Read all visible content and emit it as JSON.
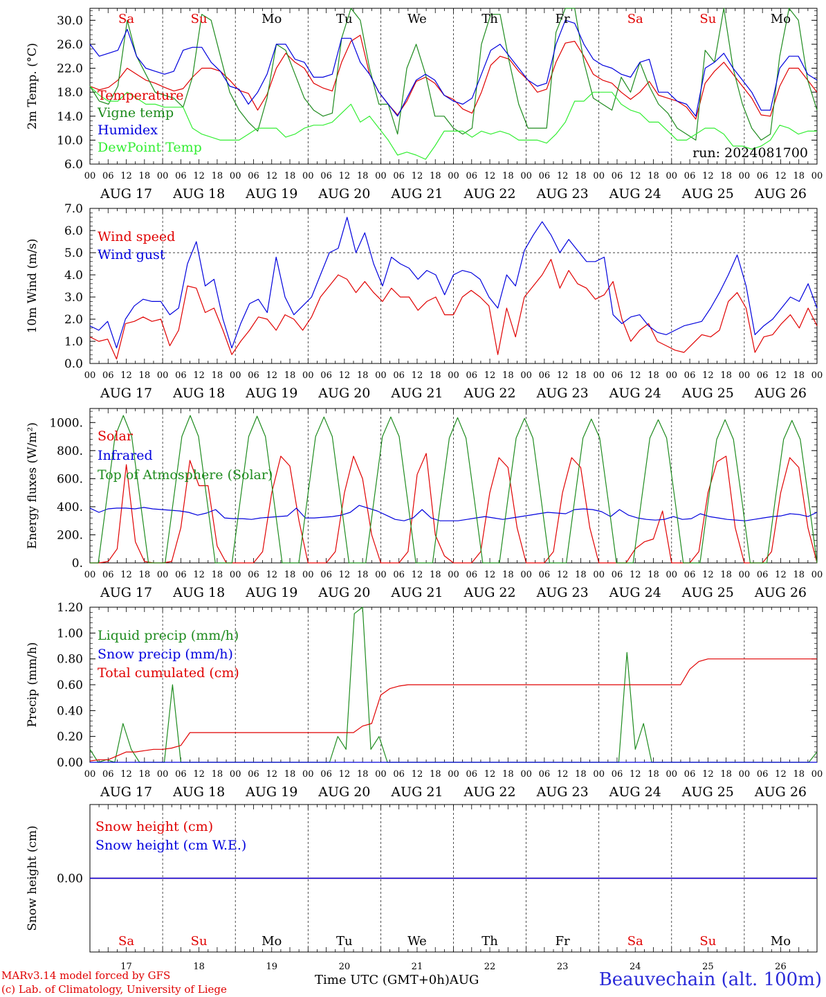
{
  "run_label": "run: 2024081700",
  "xaxis": {
    "hour_ticks": [
      "00",
      "06",
      "12",
      "18"
    ],
    "date_labels": [
      "AUG 17",
      "AUG 18",
      "AUG 19",
      "AUG 20",
      "AUG 21",
      "AUG 22",
      "AUG 23",
      "AUG 24",
      "AUG 25",
      "AUG 26"
    ],
    "weekday_labels": [
      "Sa",
      "Su",
      "Mo",
      "Tu",
      "We",
      "Th",
      "Fr",
      "Sa",
      "Su",
      "Mo"
    ],
    "weekend_color": "#e00000",
    "weekday_color": "#000000",
    "day_numbers": [
      "17",
      "18",
      "19",
      "20",
      "21",
      "22",
      "23",
      "24",
      "25",
      "26"
    ],
    "bottom_label": "Time UTC (GMT+0h)",
    "month_label": "AUG"
  },
  "footer": {
    "credit_line1": "MARv3.14 model forced by GFS",
    "credit_line2": "(c) Lab. of Climatology, University of Liege",
    "station": "Beauvechain (alt. 100m)"
  },
  "chart_data": [
    {
      "type": "line",
      "ylabel": "2m Temp. (°C)",
      "ylim": [
        6,
        32
      ],
      "yticks": [
        "6.0",
        "10.0",
        "14.0",
        "18.0",
        "22.0",
        "26.0",
        "30.0"
      ],
      "x": "hours since AUG 17 00 UTC, 3-hourly",
      "series": [
        {
          "name": "Temperature",
          "color": "#e00000",
          "values": [
            19,
            18.4,
            18.8,
            20,
            22,
            21,
            20,
            19.5,
            18.8,
            18.2,
            18.6,
            20.5,
            22,
            22,
            21.5,
            20,
            18.3,
            17.8,
            15,
            17.6,
            22,
            24.5,
            23,
            22,
            19.5,
            18.7,
            18.2,
            23,
            26.5,
            27.5,
            21,
            18,
            16,
            14.2,
            16.5,
            19.8,
            20.5,
            19.5,
            17.5,
            16.8,
            15.2,
            14.5,
            18,
            22.5,
            24,
            23.5,
            21.5,
            20,
            18,
            18.5,
            23,
            26.2,
            26.5,
            24,
            21,
            20,
            19.5,
            18,
            16.8,
            18,
            19.8,
            17.5,
            17,
            16.5,
            15.5,
            13.5,
            19.5,
            21.5,
            23,
            21,
            19,
            17,
            14.2,
            14,
            19,
            22,
            22,
            20,
            18
          ]
        },
        {
          "name": "Vigne temp",
          "color": "#1e8b1e",
          "values": [
            19,
            16.5,
            16,
            19,
            30,
            24,
            21,
            18,
            17.5,
            17,
            15.5,
            20.5,
            31,
            30,
            24,
            18,
            15,
            13,
            11.5,
            17,
            26,
            25,
            21,
            17,
            15,
            14,
            14.5,
            27,
            32,
            30,
            22,
            16,
            16,
            11,
            22,
            26,
            21,
            14,
            14,
            12,
            11,
            12,
            26,
            31,
            31,
            23,
            16,
            12,
            12,
            12,
            28,
            32,
            32,
            23,
            17,
            16,
            15,
            20.5,
            18,
            23,
            19,
            16,
            14.5,
            12,
            11,
            10,
            25,
            23,
            32,
            22,
            16,
            12,
            10,
            11,
            24,
            32,
            30,
            20,
            15
          ]
        },
        {
          "name": "Humidex",
          "color": "#0000dd",
          "values": [
            26,
            24,
            24.5,
            25,
            28.5,
            24,
            22,
            21.5,
            21,
            21.5,
            25,
            25.5,
            25.5,
            23,
            21.5,
            19,
            18.5,
            16,
            18,
            21,
            26,
            26,
            23.5,
            23,
            20.5,
            20.5,
            21,
            27,
            27,
            23,
            21,
            18,
            16,
            14,
            17,
            20,
            21,
            20,
            17.5,
            16.5,
            16,
            17,
            21,
            25,
            26,
            24,
            22,
            20,
            19,
            19.5,
            26,
            30,
            29.5,
            26,
            23.5,
            22.5,
            22,
            21,
            20.5,
            23,
            23.5,
            18,
            18,
            16.5,
            16,
            14,
            22,
            23,
            24.5,
            22,
            20,
            18,
            15,
            15,
            22,
            24,
            24,
            21,
            20
          ]
        },
        {
          "name": "DewPoint Temp",
          "color": "#33ee33",
          "values": [
            19,
            17.5,
            16.5,
            16.5,
            18,
            17,
            16,
            16,
            15.5,
            15.5,
            15.5,
            12,
            11,
            10.5,
            10,
            10,
            10,
            11,
            12,
            12,
            12,
            10.5,
            11,
            12,
            12.5,
            12.5,
            13,
            14.5,
            16,
            13,
            14,
            12,
            10,
            7.5,
            8,
            7.5,
            6.8,
            9,
            11.5,
            11.5,
            11.5,
            10.5,
            11.5,
            11,
            11.5,
            11,
            10,
            10,
            10,
            9.5,
            11,
            13,
            16.5,
            16.5,
            18,
            18,
            18,
            16,
            15,
            14.5,
            13,
            13,
            11.5,
            10,
            10,
            11,
            12,
            12,
            11,
            9,
            9,
            8.5,
            9,
            10,
            12.5,
            12,
            11,
            11.5,
            11.5
          ]
        }
      ]
    },
    {
      "type": "line",
      "ylabel": "10m Wind (m/s)",
      "ylim": [
        0,
        7
      ],
      "yticks": [
        "0.0",
        "1.0",
        "2.0",
        "3.0",
        "4.0",
        "5.0",
        "6.0",
        "7.0"
      ],
      "series": [
        {
          "name": "Wind speed",
          "color": "#e00000",
          "values": [
            1.2,
            1,
            1.1,
            0.2,
            1.8,
            1.9,
            2.1,
            1.9,
            2,
            0.8,
            1.5,
            3.5,
            3.4,
            2.3,
            2.5,
            1.5,
            0.4,
            1,
            1.5,
            2.1,
            2,
            1.5,
            2.2,
            2,
            1.5,
            2.1,
            3,
            3.5,
            4,
            3.8,
            3.2,
            3.7,
            3.2,
            2.8,
            3.4,
            3,
            3,
            2.4,
            2.8,
            3,
            2.2,
            2.2,
            3,
            3.3,
            3,
            2.6,
            0.4,
            2.5,
            1.2,
            3,
            3.5,
            4,
            4.7,
            3.4,
            4.2,
            3.6,
            3.4,
            2.9,
            3.1,
            3.7,
            2,
            1,
            1.5,
            1.8,
            1,
            0.8,
            0.6,
            0.5,
            0.9,
            1.3,
            1.2,
            1.5,
            2.8,
            3.2,
            2.5,
            0.5,
            1.2,
            1.3,
            1.8,
            2.2,
            1.6,
            2.5,
            1.7
          ]
        },
        {
          "name": "Wind gust",
          "color": "#0000dd",
          "values": [
            1.7,
            1.5,
            1.9,
            0.7,
            2,
            2.6,
            2.9,
            2.8,
            2.8,
            2.2,
            2.5,
            4.5,
            5.5,
            3.5,
            3.8,
            2,
            0.7,
            1.8,
            2.7,
            2.9,
            2.3,
            4.8,
            3,
            2.2,
            2.6,
            3,
            4,
            5,
            5.2,
            6.6,
            5,
            5.9,
            4.5,
            3.5,
            4.8,
            4.5,
            4.3,
            3.8,
            4.2,
            4,
            3.1,
            4,
            4.2,
            4.1,
            3.8,
            3,
            2.5,
            4,
            3.5,
            5.1,
            5.8,
            6.4,
            5.8,
            5,
            5.6,
            5.1,
            4.6,
            4.6,
            4.8,
            2.2,
            1.8,
            2.1,
            2.2,
            1.7,
            1.4,
            1.3,
            1.5,
            1.7,
            1.8,
            1.9,
            2.5,
            3.2,
            4,
            4.9,
            3.5,
            1.3,
            1.7,
            2,
            2.5,
            3,
            2.8,
            3.6,
            2.5
          ]
        }
      ],
      "reference_line": 5.0
    },
    {
      "type": "line",
      "ylabel": "Energy fluxes (W/m²)",
      "ylim": [
        0,
        1100
      ],
      "yticks": [
        "0.",
        "200.",
        "400.",
        "600.",
        "800.",
        "1000."
      ],
      "series": [
        {
          "name": "Solar",
          "color": "#e00000",
          "values": [
            0,
            0,
            10,
            100,
            700,
            150,
            10,
            0,
            0,
            10,
            250,
            730,
            550,
            550,
            120,
            0,
            0,
            0,
            0,
            80,
            500,
            760,
            690,
            300,
            0,
            0,
            0,
            80,
            500,
            760,
            600,
            200,
            0,
            0,
            0,
            80,
            630,
            780,
            200,
            50,
            0,
            0,
            0,
            80,
            500,
            750,
            680,
            250,
            0,
            0,
            0,
            80,
            500,
            750,
            680,
            250,
            0,
            0,
            0,
            0,
            100,
            150,
            170,
            370,
            0,
            0,
            0,
            80,
            500,
            720,
            760,
            250,
            0,
            0,
            0,
            80,
            500,
            750,
            680,
            250,
            0
          ]
        },
        {
          "name": "Infrared",
          "color": "#0000dd",
          "values": [
            390,
            360,
            385,
            390,
            390,
            385,
            395,
            385,
            380,
            375,
            370,
            360,
            340,
            355,
            380,
            320,
            315,
            315,
            310,
            320,
            325,
            330,
            335,
            390,
            320,
            320,
            325,
            330,
            340,
            360,
            410,
            390,
            370,
            340,
            310,
            300,
            320,
            380,
            320,
            300,
            300,
            300,
            310,
            320,
            330,
            320,
            310,
            320,
            330,
            340,
            350,
            360,
            355,
            350,
            380,
            385,
            380,
            365,
            330,
            380,
            340,
            320,
            310,
            305,
            310,
            330,
            310,
            315,
            350,
            330,
            320,
            310,
            305,
            300,
            310,
            320,
            330,
            335,
            350,
            345,
            330,
            360
          ]
        },
        {
          "name": "Top of Atmosphere (Solar)",
          "color": "#1e8b1e",
          "values": [
            0,
            0,
            450,
            900,
            1050,
            900,
            450,
            0,
            0,
            0,
            450,
            900,
            1050,
            900,
            450,
            0,
            0,
            0,
            450,
            900,
            1045,
            900,
            450,
            0,
            0,
            0,
            450,
            900,
            1040,
            900,
            450,
            0,
            0,
            0,
            450,
            900,
            1040,
            900,
            450,
            0,
            0,
            0,
            450,
            890,
            1035,
            890,
            450,
            0,
            0,
            0,
            450,
            890,
            1030,
            890,
            450,
            0,
            0,
            0,
            450,
            890,
            1025,
            890,
            450,
            0,
            0,
            0,
            450,
            890,
            1020,
            890,
            450,
            0,
            0,
            0,
            450,
            880,
            1020,
            880,
            450,
            0,
            0,
            0,
            450,
            880,
            1015,
            880,
            450,
            0
          ]
        }
      ]
    },
    {
      "type": "line",
      "ylabel": "Precip (mm/h)",
      "ylim": [
        0,
        1.2
      ],
      "yticks": [
        "0.00",
        "0.20",
        "0.40",
        "0.60",
        "0.80",
        "1.00",
        "1.20"
      ],
      "series": [
        {
          "name": "Liquid precip (mm/h)",
          "color": "#1e8b1e",
          "values": [
            0.1,
            0,
            0.02,
            0,
            0.3,
            0.1,
            0,
            0,
            0,
            0,
            0.6,
            0,
            0,
            0,
            0,
            0,
            0,
            0,
            0,
            0,
            0,
            0,
            0,
            0,
            0,
            0,
            0,
            0,
            0,
            0,
            0.2,
            0.1,
            1.15,
            1.2,
            0.1,
            0.2,
            0,
            0,
            0,
            0,
            0,
            0,
            0,
            0,
            0,
            0,
            0,
            0,
            0,
            0,
            0,
            0,
            0,
            0,
            0,
            0,
            0,
            0,
            0,
            0,
            0,
            0,
            0,
            0,
            0,
            0.85,
            0.1,
            0.3,
            0,
            0,
            0,
            0,
            0,
            0,
            0,
            0,
            0,
            0,
            0,
            0,
            0,
            0,
            0,
            0,
            0,
            0,
            0,
            0,
            0.08
          ]
        },
        {
          "name": "Snow precip (mm/h)",
          "color": "#0000dd",
          "values": [
            0
          ]
        },
        {
          "name": "Total cumulated (cm)",
          "color": "#e00000",
          "values": [
            0.01,
            0.02,
            0.02,
            0.05,
            0.08,
            0.08,
            0.09,
            0.1,
            0.1,
            0.11,
            0.13,
            0.23,
            0.23,
            0.23,
            0.23,
            0.23,
            0.23,
            0.23,
            0.23,
            0.23,
            0.23,
            0.23,
            0.23,
            0.23,
            0.23,
            0.23,
            0.23,
            0.23,
            0.23,
            0.23,
            0.28,
            0.3,
            0.52,
            0.57,
            0.59,
            0.6,
            0.6,
            0.6,
            0.6,
            0.6,
            0.6,
            0.6,
            0.6,
            0.6,
            0.6,
            0.6,
            0.6,
            0.6,
            0.6,
            0.6,
            0.6,
            0.6,
            0.6,
            0.6,
            0.6,
            0.6,
            0.6,
            0.6,
            0.6,
            0.6,
            0.6,
            0.6,
            0.6,
            0.6,
            0.6,
            0.6,
            0.72,
            0.78,
            0.8,
            0.8,
            0.8,
            0.8,
            0.8,
            0.8,
            0.8,
            0.8,
            0.8,
            0.8,
            0.8,
            0.8,
            0.8
          ]
        }
      ]
    },
    {
      "type": "line",
      "ylabel": "Snow height (cm)",
      "ylim": [
        -1,
        1
      ],
      "yticks": [
        "0.00"
      ],
      "series": [
        {
          "name": "Snow height (cm)",
          "color": "#e00000",
          "values": [
            0
          ]
        },
        {
          "name": "Snow height (cm W.E.)",
          "color": "#0000dd",
          "values": [
            0
          ]
        }
      ]
    }
  ]
}
